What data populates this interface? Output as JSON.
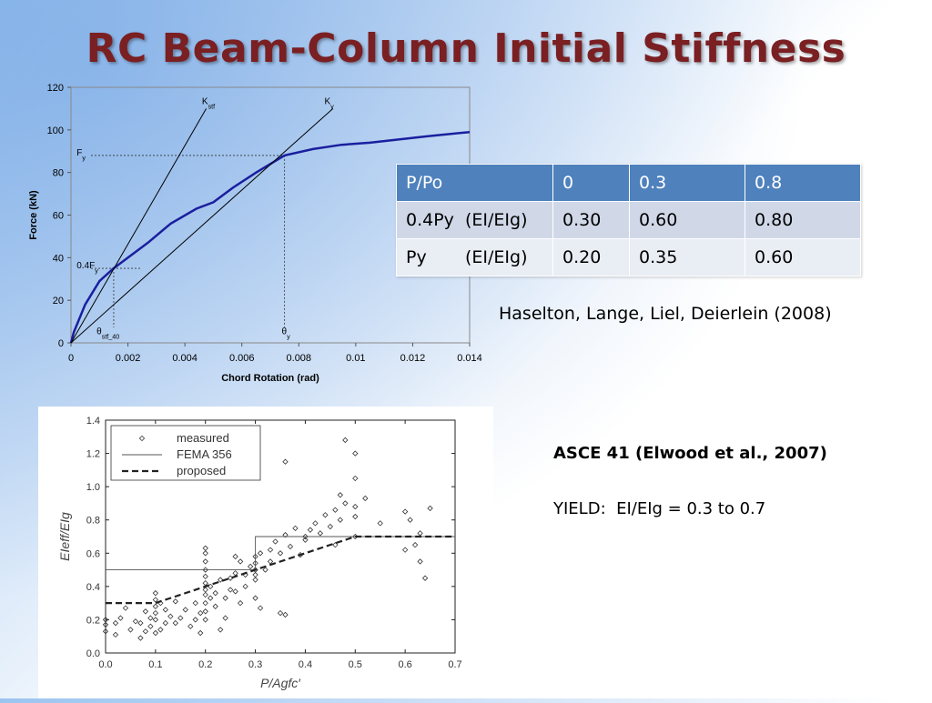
{
  "slide_title": "RC Beam-Column Initial Stiffness",
  "table": {
    "headers": [
      "P/Po",
      "0",
      "0.3",
      "0.8"
    ],
    "rows": [
      [
        "0.4Py  (EI/EIg)",
        "0.30",
        "0.60",
        "0.80"
      ],
      [
        "Py       (EI/EIg)",
        "0.20",
        "0.35",
        "0.60"
      ]
    ]
  },
  "reference_top": "Haselton, Lange, Liel, Deierlein (2008)",
  "reference_asce": "ASCE 41 (Elwood et al., 2007)",
  "yield_text": "YIELD:  EI/EIg = 0.3 to 0.7",
  "chart_data": [
    {
      "type": "line",
      "xlabel": "Chord Rotation (rad)",
      "ylabel": "Force (kN)",
      "xlim": [
        0,
        0.014
      ],
      "ylim": [
        0,
        120
      ],
      "x_ticks": [
        "0",
        "0.002",
        "0.004",
        "0.006",
        "0.008",
        "0.01",
        "0.012",
        "0.014"
      ],
      "y_ticks": [
        "0",
        "20",
        "40",
        "60",
        "80",
        "100",
        "120"
      ],
      "grid": false,
      "series": [
        {
          "color": "#1a1f9e",
          "x": [
            0,
            0.0001,
            0.0005,
            0.001,
            0.0015,
            0.002,
            0.0027,
            0.0035,
            0.0044,
            0.005,
            0.0057,
            0.0065,
            0.0075,
            0.0085,
            0.0095,
            0.0105,
            0.0115,
            0.0125,
            0.014
          ],
          "y": [
            0,
            5,
            18,
            29,
            35,
            40,
            47,
            56,
            63,
            66,
            73,
            80,
            88,
            91,
            93,
            94,
            95.5,
            97,
            99
          ]
        },
        {
          "color": "#000000",
          "x": [
            0,
            0.00475
          ],
          "y": [
            0,
            110
          ]
        },
        {
          "color": "#000000",
          "x": [
            0,
            0.0092
          ],
          "y": [
            0,
            110
          ]
        }
      ],
      "annotations": [
        {
          "main": "K",
          "sub": "stf",
          "x": 0.0046,
          "y": 112
        },
        {
          "main": "K",
          "sub": "y",
          "x": 0.0089,
          "y": 112
        },
        {
          "main": "F",
          "sub": "y",
          "x": 0.0002,
          "y": 88
        },
        {
          "main": "0.4F",
          "sub": "y",
          "x": 0.0002,
          "y": 35
        },
        {
          "main": "θ",
          "sub": "stf_40",
          "x": 0.0009,
          "y": 4
        },
        {
          "main": "θ",
          "sub": "y",
          "x": 0.0074,
          "y": 4
        }
      ],
      "reference_points": [
        {
          "name": "Fy",
          "x": 0.0075,
          "y": 88
        },
        {
          "name": "0.4Fy",
          "x": 0.0015,
          "y": 35
        }
      ]
    },
    {
      "type": "scatter",
      "xlabel": "P/Agfc′",
      "ylabel": "EIeff/EIg",
      "xlim": [
        0,
        0.7
      ],
      "ylim": [
        0,
        1.4
      ],
      "x_ticks": [
        "0.0",
        "0.1",
        "0.2",
        "0.3",
        "0.4",
        "0.5",
        "0.6",
        "0.7"
      ],
      "y_ticks": [
        "0.0",
        "0.2",
        "0.4",
        "0.6",
        "0.8",
        "1.0",
        "1.2",
        "1.4"
      ],
      "grid": false,
      "legend": {
        "position": "top-left",
        "items": [
          "measured",
          "FEMA 356",
          "proposed"
        ]
      },
      "series": [
        {
          "name": "FEMA 356",
          "style": "solid",
          "x": [
            0,
            0.3,
            0.3,
            0.7
          ],
          "y": [
            0.5,
            0.5,
            0.7,
            0.7
          ]
        },
        {
          "name": "proposed",
          "style": "dashed",
          "x": [
            0,
            0.1,
            0.5,
            0.7
          ],
          "y": [
            0.3,
            0.3,
            0.7,
            0.7
          ]
        },
        {
          "name": "measured",
          "style": "markers",
          "points": [
            [
              0.0,
              0.13
            ],
            [
              0.0,
              0.17
            ],
            [
              0.0,
              0.2
            ],
            [
              0.02,
              0.18
            ],
            [
              0.02,
              0.11
            ],
            [
              0.03,
              0.21
            ],
            [
              0.04,
              0.27
            ],
            [
              0.05,
              0.14
            ],
            [
              0.06,
              0.19
            ],
            [
              0.07,
              0.09
            ],
            [
              0.07,
              0.18
            ],
            [
              0.08,
              0.25
            ],
            [
              0.08,
              0.13
            ],
            [
              0.09,
              0.16
            ],
            [
              0.09,
              0.21
            ],
            [
              0.1,
              0.28
            ],
            [
              0.1,
              0.32
            ],
            [
              0.1,
              0.36
            ],
            [
              0.1,
              0.12
            ],
            [
              0.1,
              0.2
            ],
            [
              0.1,
              0.24
            ],
            [
              0.11,
              0.14
            ],
            [
              0.11,
              0.3
            ],
            [
              0.12,
              0.18
            ],
            [
              0.12,
              0.26
            ],
            [
              0.13,
              0.22
            ],
            [
              0.14,
              0.18
            ],
            [
              0.14,
              0.31
            ],
            [
              0.15,
              0.21
            ],
            [
              0.16,
              0.26
            ],
            [
              0.17,
              0.16
            ],
            [
              0.18,
              0.2
            ],
            [
              0.18,
              0.3
            ],
            [
              0.19,
              0.12
            ],
            [
              0.19,
              0.24
            ],
            [
              0.2,
              0.3
            ],
            [
              0.2,
              0.35
            ],
            [
              0.2,
              0.38
            ],
            [
              0.2,
              0.42
            ],
            [
              0.2,
              0.46
            ],
            [
              0.2,
              0.5
            ],
            [
              0.2,
              0.55
            ],
            [
              0.2,
              0.6
            ],
            [
              0.2,
              0.63
            ],
            [
              0.2,
              0.25
            ],
            [
              0.2,
              0.2
            ],
            [
              0.21,
              0.33
            ],
            [
              0.21,
              0.4
            ],
            [
              0.22,
              0.28
            ],
            [
              0.22,
              0.36
            ],
            [
              0.23,
              0.44
            ],
            [
              0.23,
              0.14
            ],
            [
              0.24,
              0.33
            ],
            [
              0.24,
              0.21
            ],
            [
              0.25,
              0.38
            ],
            [
              0.25,
              0.45
            ],
            [
              0.26,
              0.58
            ],
            [
              0.26,
              0.48
            ],
            [
              0.26,
              0.37
            ],
            [
              0.27,
              0.55
            ],
            [
              0.27,
              0.3
            ],
            [
              0.28,
              0.4
            ],
            [
              0.28,
              0.47
            ],
            [
              0.29,
              0.52
            ],
            [
              0.3,
              0.47
            ],
            [
              0.3,
              0.5
            ],
            [
              0.3,
              0.54
            ],
            [
              0.3,
              0.58
            ],
            [
              0.3,
              0.44
            ],
            [
              0.3,
              0.33
            ],
            [
              0.31,
              0.6
            ],
            [
              0.31,
              0.27
            ],
            [
              0.32,
              0.5
            ],
            [
              0.33,
              0.62
            ],
            [
              0.33,
              0.55
            ],
            [
              0.34,
              0.67
            ],
            [
              0.35,
              0.6
            ],
            [
              0.35,
              0.24
            ],
            [
              0.36,
              1.15
            ],
            [
              0.36,
              0.71
            ],
            [
              0.36,
              0.23
            ],
            [
              0.37,
              0.64
            ],
            [
              0.38,
              0.75
            ],
            [
              0.39,
              0.59
            ],
            [
              0.4,
              0.7
            ],
            [
              0.4,
              0.68
            ],
            [
              0.41,
              0.74
            ],
            [
              0.42,
              0.78
            ],
            [
              0.43,
              0.72
            ],
            [
              0.44,
              0.83
            ],
            [
              0.45,
              0.76
            ],
            [
              0.46,
              0.86
            ],
            [
              0.46,
              0.65
            ],
            [
              0.47,
              0.8
            ],
            [
              0.47,
              0.95
            ],
            [
              0.48,
              0.9
            ],
            [
              0.48,
              1.28
            ],
            [
              0.5,
              1.2
            ],
            [
              0.5,
              1.05
            ],
            [
              0.5,
              0.88
            ],
            [
              0.5,
              0.82
            ],
            [
              0.5,
              0.7
            ],
            [
              0.52,
              0.93
            ],
            [
              0.55,
              0.78
            ],
            [
              0.6,
              0.85
            ],
            [
              0.61,
              0.8
            ],
            [
              0.6,
              0.62
            ],
            [
              0.62,
              0.65
            ],
            [
              0.63,
              0.55
            ],
            [
              0.63,
              0.72
            ],
            [
              0.65,
              0.87
            ],
            [
              0.64,
              0.45
            ]
          ]
        }
      ]
    }
  ]
}
